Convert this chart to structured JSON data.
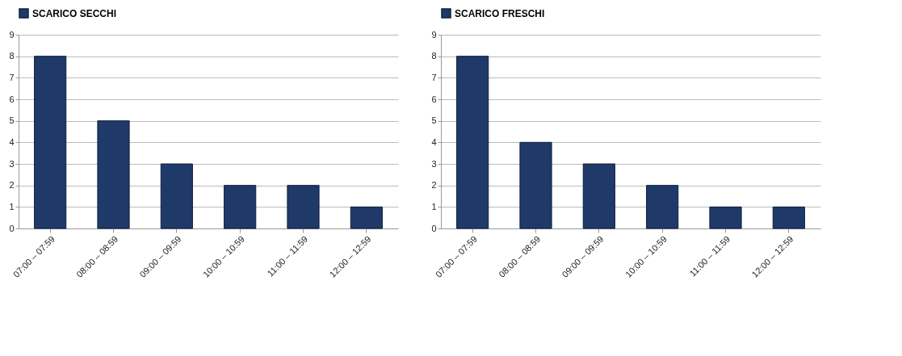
{
  "chart_data": [
    {
      "type": "bar",
      "categories": [
        "07:00 – 07:59",
        "08:00 – 08:59",
        "09:00 – 09:59",
        "10:00 – 10:59",
        "11:00 – 11:59",
        "12:00 – 12:59"
      ],
      "series": [
        {
          "name": "SCARICO SECCHI",
          "color": "#1f3a68",
          "values": [
            8,
            5,
            3,
            2,
            2,
            1
          ]
        }
      ],
      "ylim": [
        0,
        9
      ],
      "yticks": [
        0,
        1,
        2,
        3,
        4,
        5,
        6,
        7,
        8,
        9
      ],
      "grid": "y",
      "legend": "top"
    },
    {
      "type": "bar",
      "categories": [
        "07:00 – 07:59",
        "08:00 – 08:59",
        "09:00 – 09:59",
        "10:00 – 10:59",
        "11:00 – 11:59",
        "12:00 – 12:59"
      ],
      "series": [
        {
          "name": "SCARICO FRESCHI",
          "color": "#1f3a68",
          "values": [
            8,
            4,
            3,
            2,
            1,
            1
          ]
        }
      ],
      "ylim": [
        0,
        9
      ],
      "yticks": [
        0,
        1,
        2,
        3,
        4,
        5,
        6,
        7,
        8,
        9
      ],
      "grid": "y",
      "legend": "top"
    }
  ]
}
